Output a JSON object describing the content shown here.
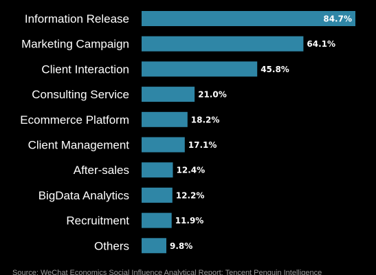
{
  "chart_data": {
    "type": "bar",
    "orientation": "horizontal",
    "categories": [
      "Information Release",
      "Marketing Campaign",
      "Client Interaction",
      "Consulting Service",
      "Ecommerce Platform",
      "Client Management",
      "After-sales",
      "BigData Analytics",
      "Recruitment",
      "Others"
    ],
    "values": [
      84.7,
      64.1,
      45.8,
      21.0,
      18.2,
      17.1,
      12.4,
      12.2,
      11.9,
      9.8
    ],
    "value_labels": [
      "84.7%",
      "64.1%",
      "45.8%",
      "21.0%",
      "18.2%",
      "17.1%",
      "12.4%",
      "12.2%",
      "11.9%",
      "9.8%"
    ],
    "xlim": [
      0,
      84.7
    ],
    "grid": false,
    "legend": "none",
    "bar_color": "#2f86a6",
    "background": "#000000"
  },
  "source": "Source: WeChat Economics Social Influence Analytical Report; Tencent Penguin Intelligence"
}
